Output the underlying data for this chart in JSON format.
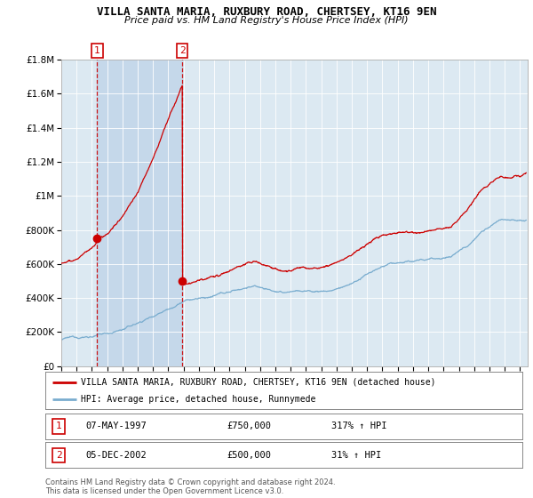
{
  "title1": "VILLA SANTA MARIA, RUXBURY ROAD, CHERTSEY, KT16 9EN",
  "title2": "Price paid vs. HM Land Registry's House Price Index (HPI)",
  "sale1_date": "07-MAY-1997",
  "sale1_price": 750000,
  "sale1_label": "317% ↑ HPI",
  "sale1_year": 1997.35,
  "sale2_date": "05-DEC-2002",
  "sale2_price": 500000,
  "sale2_label": "31% ↑ HPI",
  "sale2_year": 2002.92,
  "ylim": [
    0,
    1800000
  ],
  "xlim_start": 1995.0,
  "xlim_end": 2025.5,
  "red_color": "#cc0000",
  "blue_color": "#7aadcf",
  "bg_color": "#dce9f2",
  "shade_color": "#c5d8ea",
  "legend_line1": "VILLA SANTA MARIA, RUXBURY ROAD, CHERTSEY, KT16 9EN (detached house)",
  "legend_line2": "HPI: Average price, detached house, Runnymede",
  "footer1": "Contains HM Land Registry data © Crown copyright and database right 2024.",
  "footer2": "This data is licensed under the Open Government Licence v3.0."
}
